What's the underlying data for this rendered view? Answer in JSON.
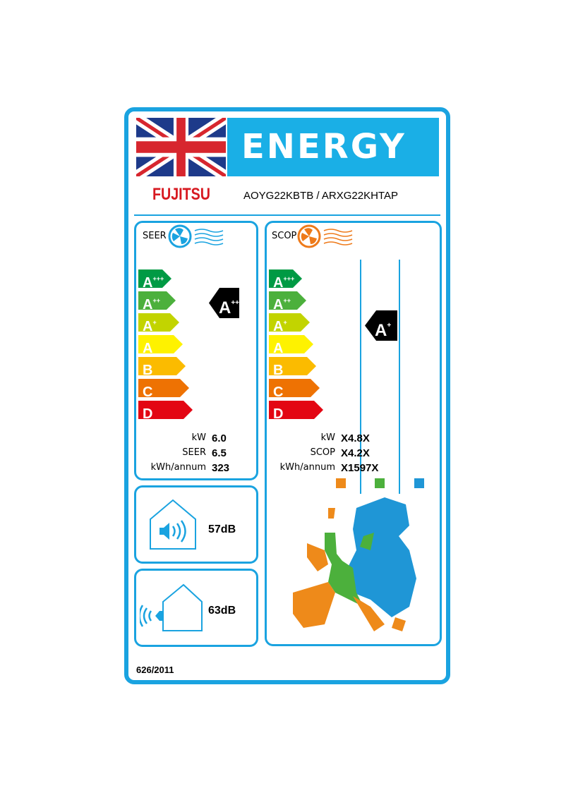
{
  "header": {
    "title": "ENERGY",
    "brand": "FUJITSU",
    "model": "AOYG22KBTB / ARXG22KHTAP"
  },
  "scale": [
    {
      "letter": "A",
      "sup": "+++",
      "color": "#009a44"
    },
    {
      "letter": "A",
      "sup": "++",
      "color": "#4cb03c"
    },
    {
      "letter": "A",
      "sup": "+",
      "color": "#c2d400"
    },
    {
      "letter": "A",
      "sup": "",
      "color": "#fef200"
    },
    {
      "letter": "B",
      "sup": "",
      "color": "#fbbb00"
    },
    {
      "letter": "C",
      "sup": "",
      "color": "#ee7203"
    },
    {
      "letter": "D",
      "sup": "",
      "color": "#e30613"
    }
  ],
  "seer": {
    "title": "SEER",
    "rating": {
      "letter": "A",
      "sup": "++"
    },
    "rows": [
      {
        "label": "kW",
        "value": "6.0"
      },
      {
        "label": "SEER",
        "value": "6.5"
      },
      {
        "label": "kWh/annum",
        "value": "323"
      }
    ]
  },
  "scop": {
    "title": "SCOP",
    "rating": {
      "letter": "A",
      "sup": "+"
    },
    "rows": [
      {
        "label": "kW",
        "value": "X4.8X"
      },
      {
        "label": "SCOP",
        "value": "X4.2X"
      },
      {
        "label": "kWh/annum",
        "value": "X1597X"
      }
    ],
    "zone_colors": [
      "#ee8a1a",
      "#4cb03c",
      "#1f96d6"
    ]
  },
  "noise": {
    "indoor": "57dB",
    "outdoor": "63dB"
  },
  "footer": {
    "regulation": "626/2011"
  }
}
